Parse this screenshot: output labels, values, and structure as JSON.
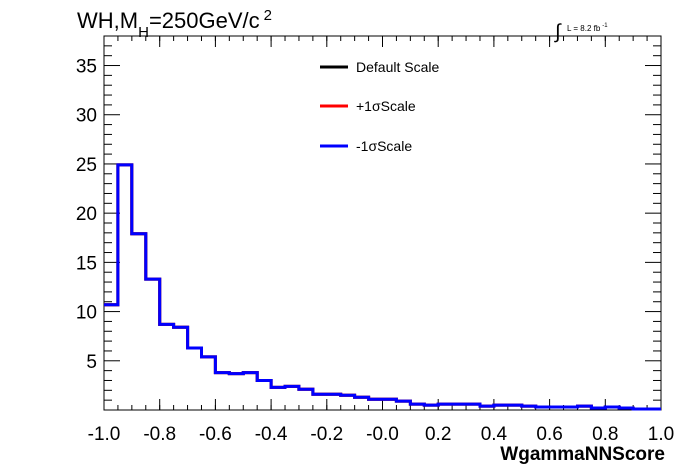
{
  "chart_data": {
    "type": "line",
    "title": "WH,M",
    "title_sub": "H",
    "title_rest": "=250GeV/c",
    "title_sup": "2",
    "lumi": {
      "integral": "∫",
      "text": "L = 8.2 fb",
      "sup": "-1"
    },
    "xlabel": "WgammaNNScore",
    "ylabel": "",
    "xlim": [
      -1.0,
      1.0
    ],
    "ylim": [
      0,
      38
    ],
    "x_ticks": [
      "-1.0",
      "-0.8",
      "-0.6",
      "-0.4",
      "-0.2",
      "-0.0",
      "0.2",
      "0.4",
      "0.6",
      "0.8",
      "1.0"
    ],
    "x_tick_values": [
      -1.0,
      -0.8,
      -0.6,
      -0.4,
      -0.2,
      0.0,
      0.2,
      0.4,
      0.6,
      0.8,
      1.0
    ],
    "y_ticks": [
      "5",
      "10",
      "15",
      "20",
      "25",
      "30",
      "35"
    ],
    "y_tick_values": [
      5,
      10,
      15,
      20,
      25,
      30,
      35
    ],
    "bin_edges": [
      -1.0,
      -0.95,
      -0.9,
      -0.85,
      -0.8,
      -0.75,
      -0.7,
      -0.65,
      -0.6,
      -0.55,
      -0.5,
      -0.45,
      -0.4,
      -0.35,
      -0.3,
      -0.25,
      -0.2,
      -0.15,
      -0.1,
      -0.05,
      0.0,
      0.05,
      0.1,
      0.15,
      0.2,
      0.25,
      0.3,
      0.35,
      0.4,
      0.45,
      0.5,
      0.55,
      0.6,
      0.65,
      0.7,
      0.75,
      0.8,
      0.85,
      0.9,
      0.95,
      1.0
    ],
    "series": [
      {
        "name": "Default Scale",
        "color": "#000000",
        "values": [
          10.7,
          24.9,
          17.9,
          13.3,
          8.7,
          8.4,
          6.3,
          5.4,
          3.8,
          3.7,
          3.8,
          3.0,
          2.3,
          2.4,
          2.1,
          1.6,
          1.6,
          1.5,
          1.3,
          1.1,
          1.1,
          0.9,
          0.6,
          0.5,
          0.6,
          0.6,
          0.6,
          0.4,
          0.5,
          0.5,
          0.4,
          0.3,
          0.3,
          0.3,
          0.4,
          0.2,
          0.3,
          0.2,
          0.1,
          0.1
        ]
      },
      {
        "name": "+1σScale",
        "color": "#ff0000",
        "values": [
          10.7,
          24.9,
          17.9,
          13.3,
          8.7,
          8.4,
          6.3,
          5.4,
          3.8,
          3.7,
          3.8,
          3.0,
          2.3,
          2.4,
          2.1,
          1.6,
          1.6,
          1.5,
          1.3,
          1.1,
          1.1,
          0.9,
          0.6,
          0.5,
          0.6,
          0.6,
          0.6,
          0.4,
          0.5,
          0.5,
          0.4,
          0.3,
          0.3,
          0.3,
          0.4,
          0.2,
          0.3,
          0.2,
          0.1,
          0.1
        ]
      },
      {
        "name": "-1σScale",
        "color": "#0000ff",
        "values": [
          10.7,
          24.9,
          17.9,
          13.3,
          8.7,
          8.4,
          6.3,
          5.4,
          3.8,
          3.7,
          3.8,
          3.0,
          2.3,
          2.4,
          2.1,
          1.6,
          1.6,
          1.5,
          1.3,
          1.1,
          1.1,
          0.9,
          0.6,
          0.5,
          0.6,
          0.6,
          0.6,
          0.4,
          0.5,
          0.5,
          0.4,
          0.3,
          0.3,
          0.3,
          0.4,
          0.2,
          0.3,
          0.2,
          0.1,
          0.1
        ]
      }
    ],
    "legend_position": "top-right",
    "grid": false
  }
}
